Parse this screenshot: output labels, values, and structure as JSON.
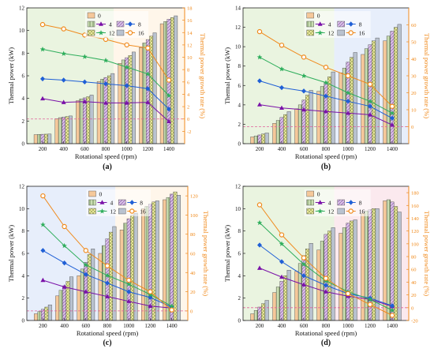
{
  "colors": {
    "bars": [
      "#f5c89a",
      "#c9ddb2",
      "#f3eaa4",
      "#d9c0e6",
      "#b9c2cf",
      "#6e7e93"
    ],
    "markers": {
      "4": "#7a12a8",
      "8": "#1f5fd6",
      "12": "#2fae5c",
      "16": "#f08a1c"
    },
    "right_axis": "#f08a1c",
    "region_a": "#eaf4e0",
    "region_b": "#fff6ea",
    "region_c": "#e7eefb",
    "region_d": "#fbe9ee"
  },
  "legend_labels": [
    "0",
    "4",
    "8",
    "12",
    "16"
  ],
  "chart_data": [
    {
      "panel_label": "(a)",
      "type": "bar",
      "xlabel": "Rotational speed (rpm)",
      "ylabel": "Thermal power (kW)",
      "y2label": "Thermal power growth rate (%)",
      "categories": [
        200,
        400,
        600,
        800,
        1000,
        1200,
        1400
      ],
      "ylim": [
        0,
        12
      ],
      "yticks": [
        0,
        2,
        4,
        6,
        8,
        10,
        12
      ],
      "y2lim": [
        -4,
        18
      ],
      "y2ticks": [
        -2,
        0,
        2,
        4,
        6,
        8,
        10,
        12,
        14,
        16,
        18
      ],
      "bar_series": [
        {
          "name": "0",
          "values": [
            0.8,
            2.2,
            3.8,
            5.5,
            7.1,
            8.5,
            10.6
          ]
        },
        {
          "name": "4",
          "values": [
            0.82,
            2.3,
            3.95,
            5.7,
            7.4,
            8.9,
            10.8
          ]
        },
        {
          "name": "8",
          "values": [
            0.83,
            2.35,
            4.05,
            5.85,
            7.6,
            9.2,
            11.0
          ]
        },
        {
          "name": "12",
          "values": [
            0.84,
            2.4,
            4.15,
            6.0,
            7.8,
            9.5,
            11.15
          ]
        },
        {
          "name": "16",
          "values": [
            0.85,
            2.45,
            4.3,
            6.2,
            8.1,
            9.8,
            11.3
          ]
        }
      ],
      "line_series": [
        {
          "name": "4",
          "values": [
            3.3,
            2.7,
            2.8,
            2.6,
            2.6,
            2.7,
            -0.4
          ]
        },
        {
          "name": "8",
          "values": [
            6.5,
            6.3,
            6.0,
            5.7,
            5.4,
            4.9,
            1.6
          ]
        },
        {
          "name": "12",
          "values": [
            11.3,
            10.6,
            10.1,
            9.5,
            8.4,
            7.3,
            3.8
          ]
        },
        {
          "name": "16",
          "values": [
            15.3,
            14.6,
            13.6,
            12.9,
            12.0,
            11.5,
            6.3
          ]
        }
      ],
      "hline": 0
    },
    {
      "panel_label": "(b)",
      "type": "bar",
      "xlabel": "Rotational speed (rpm)",
      "ylabel": "Thermal power (kW)",
      "y2label": "Thermal power growth rate (%)",
      "categories": [
        200,
        400,
        600,
        800,
        1000,
        1200,
        1400
      ],
      "ylim": [
        0,
        14
      ],
      "yticks": [
        0,
        2,
        4,
        6,
        8,
        10,
        12,
        14
      ],
      "y2lim": [
        -10,
        70
      ],
      "y2ticks": [
        0,
        10,
        20,
        30,
        40,
        50,
        60
      ],
      "bar_series": [
        {
          "name": "0",
          "values": [
            0.7,
            2.1,
            3.6,
            5.4,
            7.3,
            9.2,
            10.6
          ]
        },
        {
          "name": "4",
          "values": [
            0.8,
            2.4,
            4.0,
            5.9,
            7.8,
            9.8,
            11.1
          ]
        },
        {
          "name": "8",
          "values": [
            0.9,
            2.7,
            4.5,
            6.3,
            8.4,
            10.2,
            11.6
          ]
        },
        {
          "name": "12",
          "values": [
            1.0,
            3.0,
            5.0,
            6.9,
            8.9,
            10.6,
            12.0
          ]
        },
        {
          "name": "16",
          "values": [
            1.1,
            3.3,
            5.5,
            7.4,
            9.4,
            10.9,
            12.3
          ]
        }
      ],
      "line_series": [
        {
          "name": "4",
          "values": [
            13,
            11,
            10,
            9,
            8,
            7,
            1
          ]
        },
        {
          "name": "8",
          "values": [
            27,
            23,
            21,
            18,
            15,
            12,
            5
          ]
        },
        {
          "name": "12",
          "values": [
            41,
            34,
            30,
            26,
            20,
            15,
            8
          ]
        },
        {
          "name": "16",
          "values": [
            56,
            48,
            41,
            35,
            30,
            25,
            12
          ]
        }
      ],
      "hline": 0
    },
    {
      "panel_label": "(c)",
      "type": "bar",
      "xlabel": "Rotational speed (rpm)",
      "ylabel": "Thermal power (kW)",
      "y2label": "Thermal power growth rate (%)",
      "categories": [
        200,
        400,
        600,
        800,
        1000,
        1200,
        1400
      ],
      "ylim": [
        0,
        12
      ],
      "yticks": [
        0,
        2,
        4,
        6,
        8,
        10,
        12
      ],
      "y2lim": [
        -10,
        130
      ],
      "y2ticks": [
        0,
        20,
        40,
        60,
        80,
        100,
        120
      ],
      "bar_series": [
        {
          "name": "0",
          "values": [
            0.6,
            2.2,
            4.0,
            6.0,
            8.1,
            10.0,
            10.8
          ]
        },
        {
          "name": "4",
          "values": [
            0.8,
            2.7,
            4.6,
            6.7,
            8.7,
            10.2,
            11.0
          ]
        },
        {
          "name": "8",
          "values": [
            1.0,
            3.1,
            5.2,
            7.3,
            9.1,
            10.4,
            11.3
          ]
        },
        {
          "name": "12",
          "values": [
            1.2,
            3.5,
            5.9,
            7.9,
            9.4,
            10.6,
            11.5
          ]
        },
        {
          "name": "16",
          "values": [
            1.4,
            3.9,
            6.4,
            8.4,
            9.6,
            10.7,
            11.2
          ]
        }
      ],
      "line_series": [
        {
          "name": "4",
          "values": [
            32,
            25,
            20,
            15,
            10,
            5,
            3
          ]
        },
        {
          "name": "8",
          "values": [
            63,
            50,
            38,
            29,
            20,
            14,
            4
          ]
        },
        {
          "name": "12",
          "values": [
            90,
            68,
            48,
            37,
            28,
            17,
            5
          ]
        },
        {
          "name": "16",
          "values": [
            120,
            88,
            63,
            47,
            32,
            20,
            1
          ]
        }
      ],
      "hline": 0
    },
    {
      "panel_label": "(d)",
      "type": "bar",
      "xlabel": "Rotational speed (rpm)",
      "ylabel": "Thermal power (kW)",
      "y2label": "Thermal power growth rate (%)",
      "categories": [
        200,
        400,
        600,
        800,
        1000,
        1200,
        1400
      ],
      "ylim": [
        0,
        12
      ],
      "yticks": [
        0,
        2,
        4,
        6,
        8,
        10,
        12
      ],
      "y2lim": [
        -20,
        190
      ],
      "y2ticks": [
        -20,
        0,
        20,
        40,
        60,
        80,
        100,
        120,
        140,
        160,
        180
      ],
      "bar_series": [
        {
          "name": "0",
          "values": [
            0.6,
            2.5,
            4.4,
            6.3,
            7.8,
            9.6,
            10.7
          ]
        },
        {
          "name": "4",
          "values": [
            0.9,
            3.0,
            5.1,
            7.1,
            8.3,
            9.8,
            10.8
          ]
        },
        {
          "name": "8",
          "values": [
            1.2,
            3.5,
            5.8,
            7.7,
            8.7,
            9.9,
            10.6
          ]
        },
        {
          "name": "12",
          "values": [
            1.5,
            4.0,
            6.4,
            8.0,
            8.9,
            10.0,
            10.2
          ]
        },
        {
          "name": "16",
          "values": [
            1.8,
            4.5,
            6.9,
            8.3,
            9.0,
            10.0,
            9.7
          ]
        }
      ],
      "line_series": [
        {
          "name": "4",
          "values": [
            62,
            48,
            36,
            25,
            18,
            13,
            2
          ]
        },
        {
          "name": "8",
          "values": [
            98,
            72,
            50,
            35,
            22,
            15,
            3
          ]
        },
        {
          "name": "12",
          "values": [
            133,
            100,
            68,
            42,
            25,
            13,
            -4
          ]
        },
        {
          "name": "16",
          "values": [
            161,
            114,
            78,
            46,
            22,
            5,
            -12
          ]
        }
      ],
      "hline": 0
    }
  ]
}
